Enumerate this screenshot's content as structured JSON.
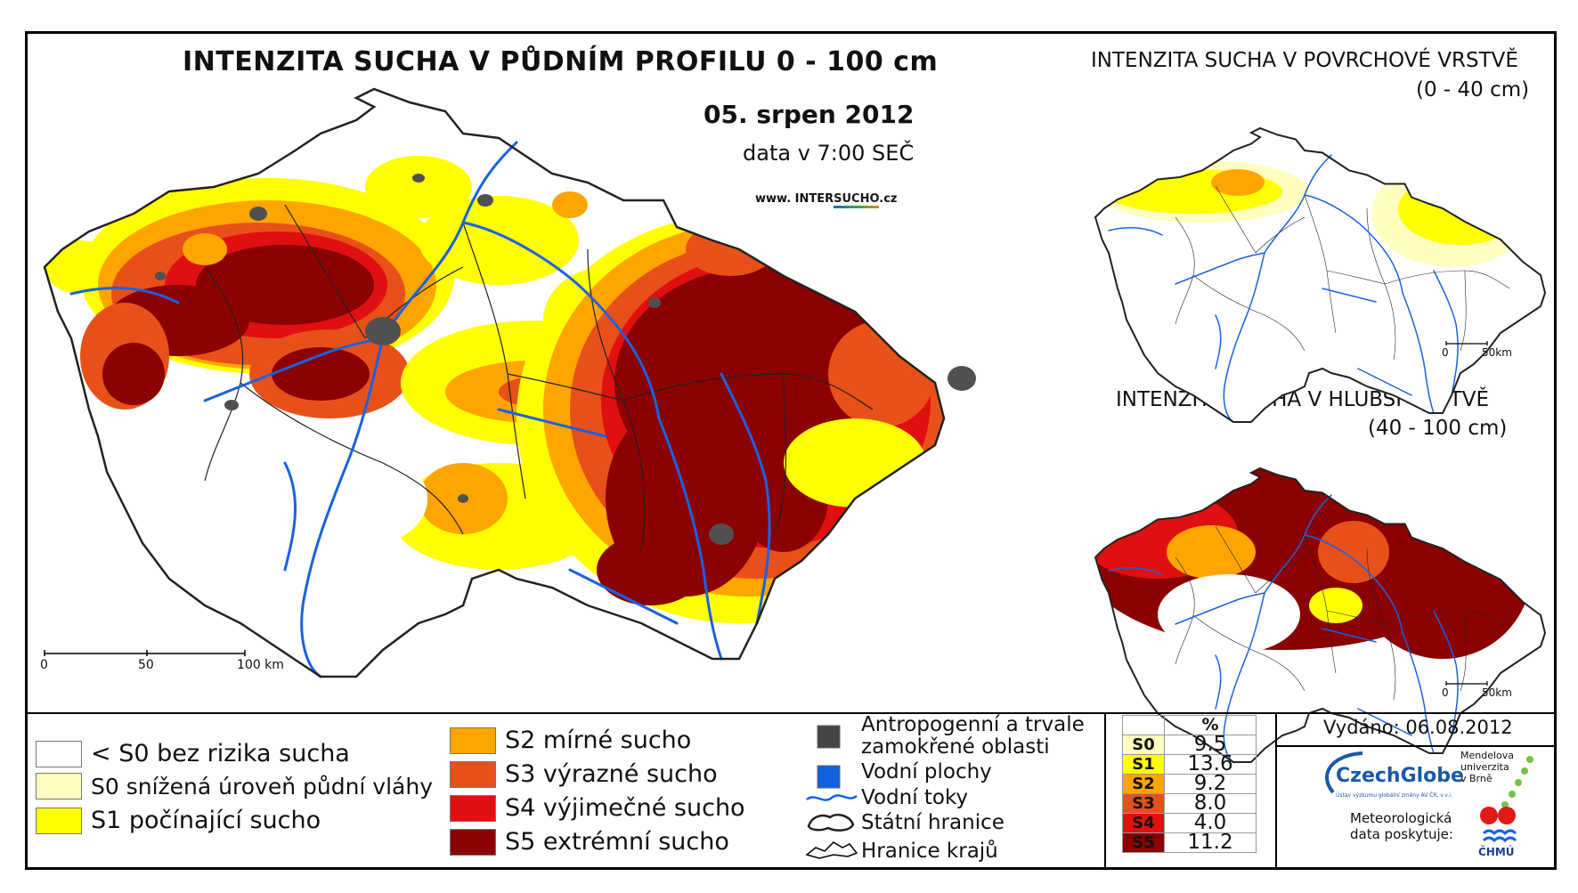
{
  "header": {
    "title": "INTENZITA SUCHA V PŮDNÍM PROFILU 0 - 100 cm",
    "date": "05. srpen 2012",
    "data_time": "data v 7:00 SEČ",
    "website_prefix": "www. INTER",
    "website_accent": "SUCHO",
    "website_suffix": ".cz"
  },
  "main_map": {
    "scale_labels": [
      "0",
      "50",
      "100 km"
    ]
  },
  "inset_top": {
    "title": "INTENZITA SUCHA V POVRCHOVÉ VRSTVĚ",
    "subtitle": "(0 - 40 cm)",
    "scale_labels": [
      "0",
      "50km"
    ]
  },
  "inset_bottom": {
    "title": "INTENZITA SUCHA V HLUBŠÍ VRSTVĚ",
    "subtitle": "(40 - 100 cm)",
    "scale_labels": [
      "0",
      "50km"
    ]
  },
  "legend": {
    "classes": [
      {
        "label": "< S0 bez rizika sucha",
        "color": "#ffffff"
      },
      {
        "label": "S0 snížená úroveň půdní vláhy",
        "color": "#ffffc0"
      },
      {
        "label": "S1 počínající sucho",
        "color": "#ffff00"
      },
      {
        "label": "S2 mírné sucho",
        "color": "#ffa500"
      },
      {
        "label": "S3 výrazné sucho",
        "color": "#e8501a"
      },
      {
        "label": "S4 výjimečné sucho",
        "color": "#e01010"
      },
      {
        "label": "S5 extrémní sucho",
        "color": "#8b0000"
      }
    ],
    "symbols": [
      {
        "label_line1": "Antropogenní a trvale",
        "label_line2": "zamokřené oblasti",
        "color": "#444444",
        "icon": "anthropogenic-area-icon"
      },
      {
        "label": "Vodní plochy",
        "color": "#1060e0",
        "icon": "water-body-icon"
      },
      {
        "label": "Vodní toky",
        "color": "#1060e0",
        "icon": "river-icon"
      },
      {
        "label": "Státní hranice",
        "icon": "state-border-icon"
      },
      {
        "label": "Hranice krajů",
        "icon": "region-border-icon"
      }
    ]
  },
  "stats": {
    "header": "%",
    "rows": [
      {
        "code": "S0",
        "value": "9.5",
        "color": "#ffffc0"
      },
      {
        "code": "S1",
        "value": "13.6",
        "color": "#ffff00"
      },
      {
        "code": "S2",
        "value": "9.2",
        "color": "#ffa500"
      },
      {
        "code": "S3",
        "value": "8.0",
        "color": "#e8501a"
      },
      {
        "code": "S4",
        "value": "4.0",
        "color": "#e01010"
      },
      {
        "code": "S5",
        "value": "11.2",
        "color": "#8b0000"
      }
    ]
  },
  "footer": {
    "issued": "Vydáno: 06.08.2012",
    "czechglobe": "CzechGlobe",
    "czechglobe_sub": "Ústav výzkumu globální změny AV ČR, v.v.i.",
    "mendel": "Mendelova univerzita v Brně",
    "meteo": "Meteorologická data poskytuje:",
    "chmu": "ČHMÚ"
  }
}
